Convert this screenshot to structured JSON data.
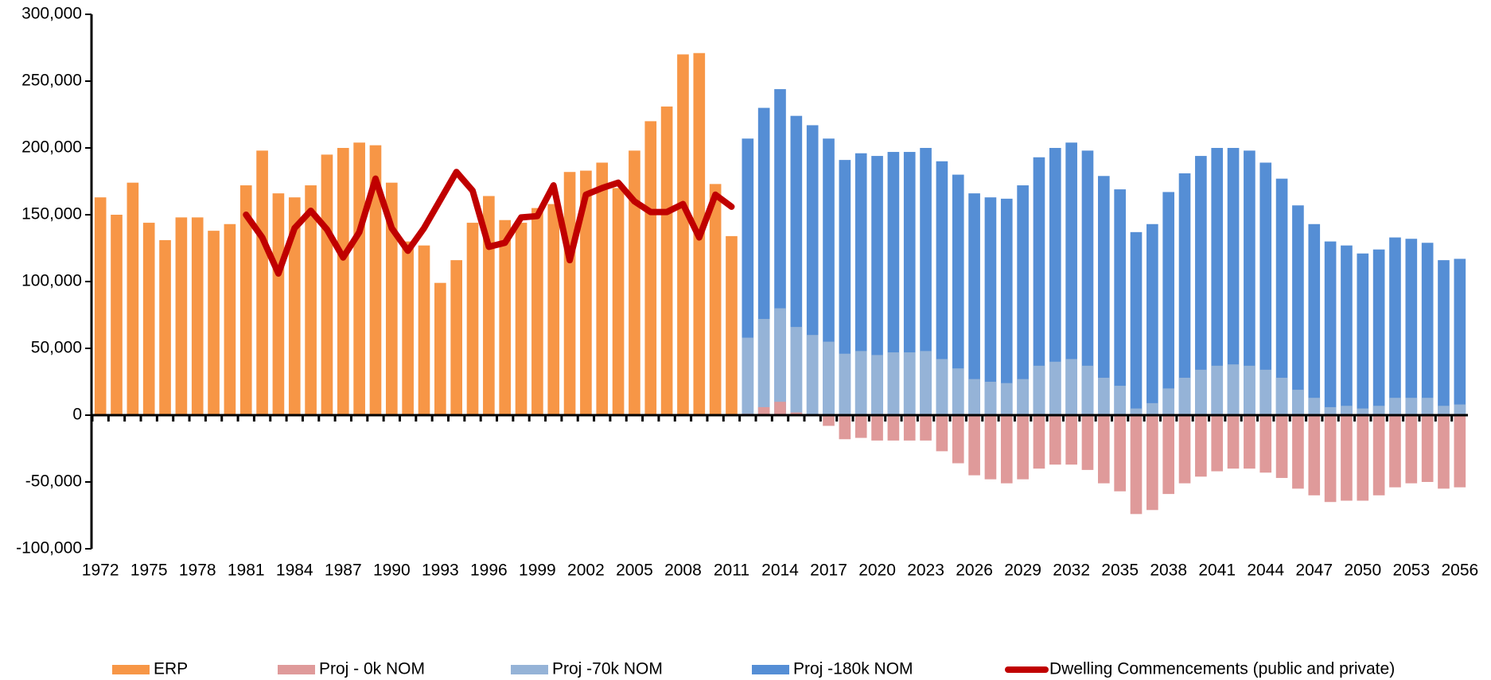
{
  "chart_data": {
    "type": "bar",
    "categories": [
      "1972",
      null,
      null,
      "1975",
      null,
      null,
      "1978",
      null,
      null,
      "1981",
      null,
      null,
      "1984",
      null,
      null,
      "1987",
      null,
      null,
      "1990",
      null,
      null,
      "1993",
      null,
      null,
      "1996",
      null,
      null,
      "1999",
      null,
      null,
      "2002",
      null,
      null,
      "2005",
      null,
      null,
      "2008",
      null,
      null,
      "2011",
      null,
      null,
      "2014",
      null,
      null,
      "2017",
      null,
      null,
      "2020",
      null,
      null,
      "2023",
      null,
      null,
      "2026",
      null,
      null,
      "2029",
      null,
      null,
      "2032",
      null,
      null,
      "2035",
      null,
      null,
      "2038",
      null,
      null,
      "2041",
      null,
      null,
      "2044",
      null,
      null,
      "2047",
      null,
      null,
      "2050",
      null,
      null,
      "2053",
      null,
      null,
      "2056"
    ],
    "series": [
      {
        "name": "ERP",
        "color": "#f79646",
        "values": [
          163000,
          150000,
          174000,
          144000,
          131000,
          148000,
          148000,
          138000,
          143000,
          172000,
          198000,
          166000,
          163000,
          172000,
          195000,
          200000,
          204000,
          202000,
          174000,
          130000,
          127000,
          99000,
          116000,
          144000,
          164000,
          146000,
          144000,
          155000,
          158000,
          182000,
          183000,
          189000,
          170000,
          198000,
          220000,
          231000,
          270000,
          271000,
          173000,
          134000,
          null,
          null,
          null,
          null,
          null,
          null,
          null,
          null,
          null,
          null,
          null,
          null,
          null,
          null,
          null,
          null,
          null,
          null,
          null,
          null,
          null,
          null,
          null,
          null,
          null,
          null,
          null,
          null,
          null,
          null,
          null,
          null,
          null,
          null,
          null,
          null,
          null,
          null,
          null,
          null,
          null,
          null,
          null,
          null,
          null
        ]
      },
      {
        "name": "Proj - 0k NOM",
        "color": "#df9a9a",
        "values": [
          null,
          null,
          null,
          null,
          null,
          null,
          null,
          null,
          null,
          null,
          null,
          null,
          null,
          null,
          null,
          null,
          null,
          null,
          null,
          null,
          null,
          null,
          null,
          null,
          null,
          null,
          null,
          null,
          null,
          null,
          null,
          null,
          null,
          null,
          null,
          null,
          null,
          null,
          null,
          null,
          1000,
          6000,
          10000,
          2000,
          0,
          -8000,
          -18000,
          -17000,
          -19000,
          -19000,
          -19000,
          -19000,
          -27000,
          -36000,
          -45000,
          -48000,
          -51000,
          -48000,
          -40000,
          -37000,
          -37000,
          -41000,
          -51000,
          -57000,
          -74000,
          -71000,
          -59000,
          -51000,
          -46000,
          -42000,
          -40000,
          -40000,
          -43000,
          -47000,
          -55000,
          -60000,
          -65000,
          -64000,
          -64000,
          -60000,
          -54000,
          -51000,
          -50000,
          -55000,
          -54000
        ]
      },
      {
        "name": "Proj -70k NOM",
        "color": "#95b3d7",
        "values": [
          null,
          null,
          null,
          null,
          null,
          null,
          null,
          null,
          null,
          null,
          null,
          null,
          null,
          null,
          null,
          null,
          null,
          null,
          null,
          null,
          null,
          null,
          null,
          null,
          null,
          null,
          null,
          null,
          null,
          null,
          null,
          null,
          null,
          null,
          null,
          null,
          null,
          null,
          null,
          null,
          58000,
          72000,
          80000,
          66000,
          60000,
          55000,
          46000,
          48000,
          45000,
          47000,
          47000,
          48000,
          42000,
          35000,
          27000,
          25000,
          24000,
          27000,
          37000,
          40000,
          42000,
          37000,
          28000,
          22000,
          5000,
          9000,
          20000,
          28000,
          34000,
          37000,
          38000,
          37000,
          34000,
          28000,
          19000,
          13000,
          6000,
          7000,
          5000,
          7000,
          13000,
          13000,
          13000,
          7000,
          8000
        ]
      },
      {
        "name": "Proj -180k NOM",
        "color": "#558ed5",
        "values": [
          null,
          null,
          null,
          null,
          null,
          null,
          null,
          null,
          null,
          null,
          null,
          null,
          null,
          null,
          null,
          null,
          null,
          null,
          null,
          null,
          null,
          null,
          null,
          null,
          null,
          null,
          null,
          null,
          null,
          null,
          null,
          null,
          null,
          null,
          null,
          null,
          null,
          null,
          null,
          null,
          207000,
          230000,
          244000,
          224000,
          217000,
          207000,
          191000,
          196000,
          194000,
          197000,
          197000,
          200000,
          190000,
          180000,
          166000,
          163000,
          162000,
          172000,
          193000,
          200000,
          204000,
          198000,
          179000,
          169000,
          137000,
          143000,
          167000,
          181000,
          194000,
          200000,
          200000,
          198000,
          189000,
          177000,
          157000,
          143000,
          130000,
          127000,
          121000,
          124000,
          133000,
          132000,
          129000,
          116000,
          117000
        ]
      },
      {
        "name": "Dwelling Commencements (public and private)",
        "color": "#c00000",
        "type": "line",
        "values": [
          null,
          null,
          null,
          null,
          null,
          null,
          null,
          null,
          null,
          150000,
          133000,
          106000,
          140000,
          153000,
          139000,
          118000,
          137000,
          177000,
          140000,
          123000,
          140000,
          161000,
          182000,
          168000,
          126000,
          129000,
          148000,
          149000,
          172000,
          116000,
          165000,
          170000,
          174000,
          160000,
          152000,
          152000,
          158000,
          133000,
          165000,
          156000,
          null,
          null,
          null,
          null,
          null,
          null,
          null,
          null,
          null,
          null,
          null,
          null,
          null,
          null,
          null,
          null,
          null,
          null,
          null,
          null,
          null,
          null,
          null,
          null,
          null,
          null,
          null,
          null,
          null,
          null,
          null,
          null,
          null,
          null,
          null,
          null,
          null,
          null,
          null,
          null,
          null,
          null,
          null,
          null,
          null
        ]
      }
    ],
    "ylim": [
      -100000,
      300000
    ],
    "yticks": [
      {
        "value": -100000,
        "label": "-100,000"
      },
      {
        "value": -50000,
        "label": "-50,000"
      },
      0,
      {
        "value": 50000,
        "label": "50,000"
      },
      {
        "value": 100000,
        "label": "100,000"
      },
      {
        "value": 150000,
        "label": "150,000"
      },
      {
        "value": 200000,
        "label": "200,000"
      },
      {
        "value": 250000,
        "label": "250,000"
      },
      {
        "value": 300000,
        "label": "300,000"
      }
    ],
    "grid": false,
    "legend": "bottom"
  }
}
